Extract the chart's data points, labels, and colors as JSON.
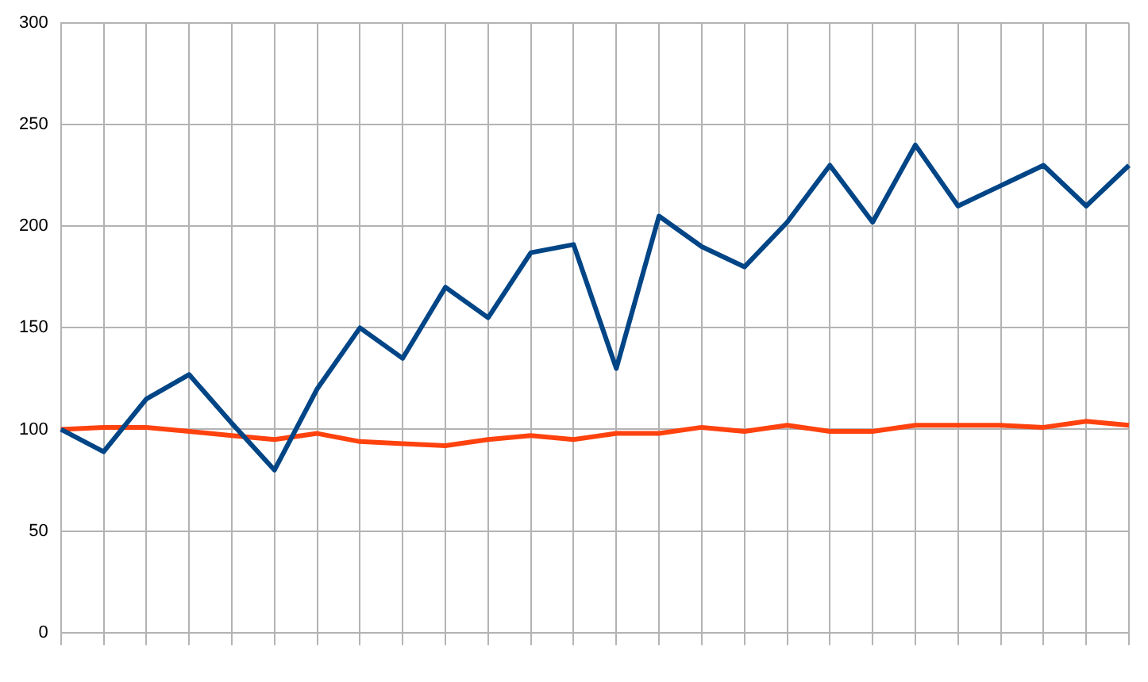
{
  "chart_data": {
    "type": "line",
    "categories": [
      null,
      null,
      null,
      null,
      null,
      null,
      null,
      null,
      null,
      null,
      null,
      null,
      null,
      null,
      null,
      null,
      null,
      null,
      null,
      null,
      null,
      null,
      null,
      null,
      null,
      null
    ],
    "series": [
      {
        "color": "#004586",
        "values": [
          100,
          89,
          115,
          127,
          103,
          80,
          120,
          150,
          135,
          170,
          155,
          187,
          191,
          130,
          205,
          190,
          180,
          202,
          230,
          202,
          240,
          210,
          220,
          230,
          210,
          230
        ]
      },
      {
        "color": "#ff420e",
        "values": [
          100,
          101,
          101,
          99,
          97,
          95,
          98,
          94,
          93,
          92,
          95,
          97,
          95,
          98,
          98,
          101,
          99,
          102,
          99,
          99,
          102,
          102,
          102,
          101,
          104,
          102
        ]
      }
    ],
    "ylim": [
      0,
      300
    ],
    "yticks": [
      0,
      50,
      100,
      150,
      200,
      250,
      300
    ],
    "grid": true,
    "legend": false
  }
}
